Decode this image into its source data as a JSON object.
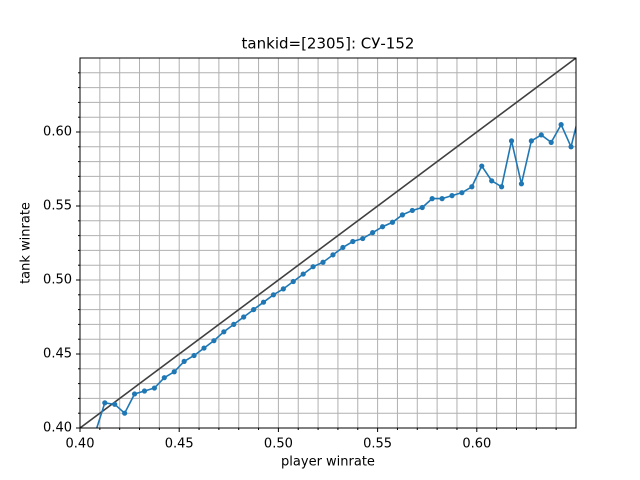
{
  "chart_data": {
    "type": "line",
    "title": "tankid=[2305]: СУ-152",
    "x_label": "player winrate",
    "y_label": "tank winrate",
    "xlim": [
      0.4,
      0.65
    ],
    "ylim": [
      0.4,
      0.65
    ],
    "xticks": [
      {
        "value": 0.4,
        "label": "0.40"
      },
      {
        "value": 0.45,
        "label": "0.45"
      },
      {
        "value": 0.5,
        "label": "0.50"
      },
      {
        "value": 0.55,
        "label": "0.55"
      },
      {
        "value": 0.6,
        "label": "0.60"
      }
    ],
    "yticks": [
      {
        "value": 0.4,
        "label": "0.40"
      },
      {
        "value": 0.45,
        "label": "0.45"
      },
      {
        "value": 0.5,
        "label": "0.50"
      },
      {
        "value": 0.55,
        "label": "0.55"
      },
      {
        "value": 0.6,
        "label": "0.60"
      }
    ],
    "xminorticks": [
      0.41,
      0.42,
      0.43,
      0.44,
      0.46,
      0.47,
      0.48,
      0.49,
      0.51,
      0.52,
      0.53,
      0.54,
      0.56,
      0.57,
      0.58,
      0.59,
      0.61,
      0.62,
      0.63,
      0.64
    ],
    "yminorticks": [
      0.41,
      0.42,
      0.43,
      0.44,
      0.46,
      0.47,
      0.48,
      0.49,
      0.51,
      0.52,
      0.53,
      0.54,
      0.56,
      0.57,
      0.58,
      0.59,
      0.61,
      0.62,
      0.63,
      0.64
    ],
    "grid": true,
    "series": [
      {
        "color": "#404040",
        "marker": false,
        "x": [
          0.4,
          0.65
        ],
        "values": [
          0.4,
          0.65
        ]
      },
      {
        "color": "#1f77b4",
        "marker": true,
        "x": [
          0.4075,
          0.4125,
          0.4175,
          0.4225,
          0.4275,
          0.4325,
          0.4375,
          0.4425,
          0.4475,
          0.4525,
          0.4575,
          0.4625,
          0.4675,
          0.4725,
          0.4775,
          0.4825,
          0.4875,
          0.4925,
          0.4975,
          0.5025,
          0.5075,
          0.5125,
          0.5175,
          0.5225,
          0.5275,
          0.5325,
          0.5375,
          0.5425,
          0.5475,
          0.5525,
          0.5575,
          0.5625,
          0.5675,
          0.5725,
          0.5775,
          0.5825,
          0.5875,
          0.5925,
          0.5975,
          0.6025,
          0.6075,
          0.6125,
          0.6175,
          0.6225,
          0.6275,
          0.6325,
          0.6375,
          0.6425,
          0.6475,
          0.6525
        ],
        "values": [
          0.396,
          0.417,
          0.416,
          0.41,
          0.423,
          0.425,
          0.427,
          0.434,
          0.438,
          0.445,
          0.449,
          0.454,
          0.459,
          0.465,
          0.47,
          0.475,
          0.48,
          0.485,
          0.49,
          0.494,
          0.499,
          0.504,
          0.509,
          0.512,
          0.517,
          0.522,
          0.526,
          0.528,
          0.532,
          0.536,
          0.539,
          0.544,
          0.547,
          0.549,
          0.555,
          0.555,
          0.557,
          0.559,
          0.563,
          0.577,
          0.567,
          0.563,
          0.594,
          0.565,
          0.594,
          0.598,
          0.593,
          0.605,
          0.59,
          0.617
        ]
      }
    ]
  }
}
